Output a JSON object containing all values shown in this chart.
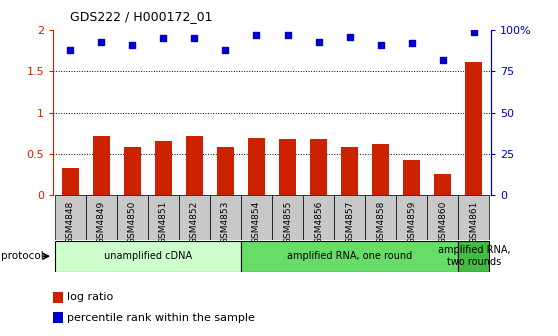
{
  "title": "GDS222 / H000172_01",
  "samples": [
    "GSM4848",
    "GSM4849",
    "GSM4850",
    "GSM4851",
    "GSM4852",
    "GSM4853",
    "GSM4854",
    "GSM4855",
    "GSM4856",
    "GSM4857",
    "GSM4858",
    "GSM4859",
    "GSM4860",
    "GSM4861"
  ],
  "log_ratio": [
    0.33,
    0.72,
    0.58,
    0.65,
    0.72,
    0.58,
    0.69,
    0.68,
    0.68,
    0.58,
    0.62,
    0.42,
    0.25,
    1.62
  ],
  "percentile_rank": [
    88,
    93,
    91,
    95,
    95,
    88,
    97,
    97,
    93,
    96,
    91,
    92,
    82,
    99
  ],
  "bar_color": "#cc2200",
  "dot_color": "#0000cc",
  "ylim_left": [
    0,
    2
  ],
  "ylim_right": [
    0,
    100
  ],
  "yticks_left": [
    0,
    0.5,
    1.0,
    1.5,
    2.0
  ],
  "ytick_labels_left": [
    "0",
    "0.5",
    "1",
    "1.5",
    "2"
  ],
  "yticks_right": [
    0,
    25,
    50,
    75,
    100
  ],
  "ytick_labels_right": [
    "0",
    "25",
    "50",
    "75",
    "100%"
  ],
  "hlines": [
    0.5,
    1.0,
    1.5
  ],
  "protocols": [
    {
      "label": "unamplified cDNA",
      "start": 0,
      "end": 6,
      "color": "#ccffcc"
    },
    {
      "label": "amplified RNA, one round",
      "start": 6,
      "end": 13,
      "color": "#66dd66"
    },
    {
      "label": "amplified RNA,\ntwo rounds",
      "start": 13,
      "end": 14,
      "color": "#44bb44"
    }
  ],
  "protocol_label": "protocol",
  "legend_bar_label": "log ratio",
  "legend_dot_label": "percentile rank within the sample",
  "bg_color": "#d8d8d8",
  "cell_color": "#c8c8c8",
  "white": "#ffffff"
}
